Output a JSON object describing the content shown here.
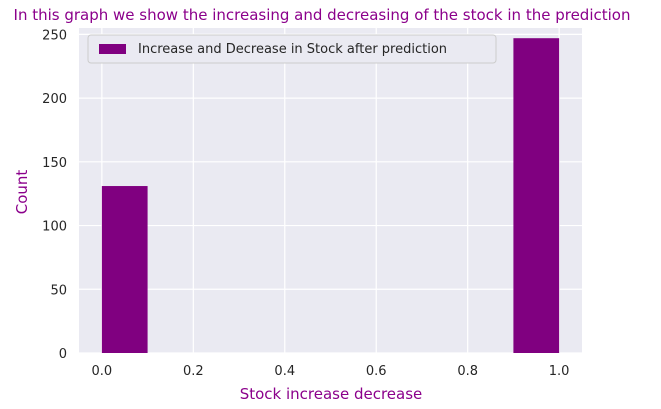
{
  "chart_data": {
    "type": "bar",
    "title": "In this graph we show the increasing and decreasing of the stock in the prediction",
    "xlabel": "Stock increase decrease",
    "ylabel": "Count",
    "xlim": [
      -0.05,
      1.05
    ],
    "ylim": [
      0,
      255
    ],
    "xticks": [
      "0.0",
      "0.2",
      "0.4",
      "0.6",
      "0.8",
      "1.0"
    ],
    "yticks": [
      "0",
      "50",
      "100",
      "150",
      "200",
      "250"
    ],
    "bars": [
      {
        "x_start": 0.0,
        "x_end": 0.1,
        "value": 131
      },
      {
        "x_start": 0.9,
        "x_end": 1.0,
        "value": 247
      }
    ],
    "series": [
      {
        "name": "Increase and Decrease in Stock after prediction",
        "color": "#800080"
      }
    ],
    "legend_position": "top-left",
    "grid": true,
    "background": "#eaeaf2"
  }
}
